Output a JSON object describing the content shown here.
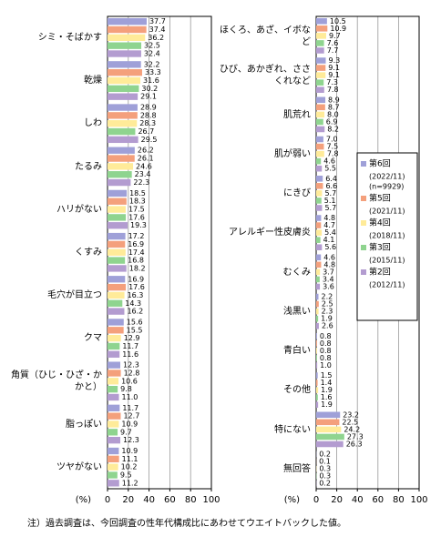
{
  "chart_data": [
    {
      "type": "bar",
      "orientation": "horizontal",
      "axis_label": "(%)",
      "xlim": [
        0,
        100
      ],
      "xticks": [
        0,
        20,
        40,
        60,
        80,
        100
      ],
      "grid": true,
      "categories": [
        "シミ・そばかす",
        "乾燥",
        "しわ",
        "たるみ",
        "ハリがない",
        "くすみ",
        "毛穴が目立つ",
        "クマ",
        "角質（ひじ・ひざ・かかと）",
        "脂っぽい",
        "ツヤがない"
      ],
      "series": [
        {
          "color": "#9fa0d8",
          "values": [
            37.7,
            32.2,
            28.9,
            26.2,
            18.5,
            17.2,
            16.9,
            15.6,
            12.3,
            11.7,
            10.9
          ]
        },
        {
          "color": "#f4a07c",
          "values": [
            37.4,
            33.3,
            28.8,
            26.1,
            18.3,
            16.9,
            17.6,
            15.5,
            12.8,
            12.7,
            11.1
          ]
        },
        {
          "color": "#ffeb99",
          "values": [
            36.2,
            31.6,
            28.3,
            24.6,
            17.5,
            17.4,
            16.3,
            12.9,
            10.6,
            10.9,
            10.2
          ]
        },
        {
          "color": "#8fd48f",
          "values": [
            32.5,
            30.2,
            26.7,
            23.4,
            17.6,
            16.8,
            14.3,
            11.7,
            9.8,
            9.7,
            9.5
          ]
        },
        {
          "color": "#b39cd0",
          "values": [
            32.4,
            29.1,
            29.5,
            22.3,
            19.3,
            18.2,
            16.2,
            11.6,
            11,
            12.3,
            11.2
          ],
          "value_labels": [
            "32.4",
            "29.1",
            "29.5",
            "22.3",
            "19.3",
            "18.2",
            "16.2",
            "11.6",
            "11.0",
            "12.3",
            "11.2"
          ]
        }
      ]
    },
    {
      "type": "bar",
      "orientation": "horizontal",
      "axis_label": "(%)",
      "xlim": [
        0,
        100
      ],
      "xticks": [
        0,
        20,
        40,
        60,
        80,
        100
      ],
      "grid": true,
      "legend": "right",
      "categories": [
        "ほくろ、あざ、イボなど",
        "ひび、あかぎれ、ささくれなど",
        "肌荒れ",
        "肌が弱い",
        "にきび",
        "アレルギー性皮膚炎",
        "むくみ",
        "浅黒い",
        "青白い",
        "その他",
        "特にない",
        "無回答"
      ],
      "series": [
        {
          "name": "第6回",
          "period": "(2022/11)",
          "sample": "(n=9929)",
          "color": "#9fa0d8",
          "values": [
            10.5,
            9.3,
            8.9,
            7,
            6.4,
            4.8,
            4.6,
            2.2,
            0.8,
            1.5,
            23.2,
            0.2
          ],
          "value_labels": [
            "10.5",
            "9.3",
            "8.9",
            "7.0",
            "6.4",
            "4.8",
            "4.6",
            "2.2",
            "0.8",
            "1.5",
            "23.2",
            "0.2"
          ]
        },
        {
          "name": "第5回",
          "period": "(2021/11)",
          "color": "#f4a07c",
          "values": [
            10.9,
            9.1,
            8.7,
            7.5,
            6.6,
            4.7,
            4.8,
            2.5,
            0.8,
            1.4,
            22.5,
            0.1
          ]
        },
        {
          "name": "第4回",
          "period": "(2018/11)",
          "color": "#ffeb99",
          "values": [
            9.7,
            9.1,
            8,
            7.8,
            5.7,
            5.4,
            3.7,
            2.3,
            0.8,
            1.9,
            24.2,
            0.3
          ],
          "value_labels": [
            "9.7",
            "9.1",
            "8.0",
            "7.8",
            "5.7",
            "5.4",
            "3.7",
            "2.3",
            "0.8",
            "1.9",
            "24.2",
            "0.3"
          ]
        },
        {
          "name": "第3回",
          "period": "(2015/11)",
          "color": "#8fd48f",
          "values": [
            7.6,
            7.3,
            6.9,
            4.6,
            5.1,
            4.1,
            3.4,
            1.9,
            0.8,
            1.6,
            27.3,
            0.3
          ]
        },
        {
          "name": "第2回",
          "period": "(2012/11)",
          "color": "#b39cd0",
          "values": [
            7.7,
            7.8,
            8.2,
            5.5,
            5.7,
            5.6,
            3.6,
            2.6,
            1,
            1.9,
            26.3,
            0.2
          ],
          "value_labels": [
            "7.7",
            "7.8",
            "8.2",
            "5.5",
            "5.7",
            "5.6",
            "3.6",
            "2.6",
            "1.0",
            "1.9",
            "26.3",
            "0.2"
          ]
        }
      ]
    }
  ],
  "note": "注）過去調査は、今回調査の性年代構成比にあわせてウエイトバックした値。"
}
